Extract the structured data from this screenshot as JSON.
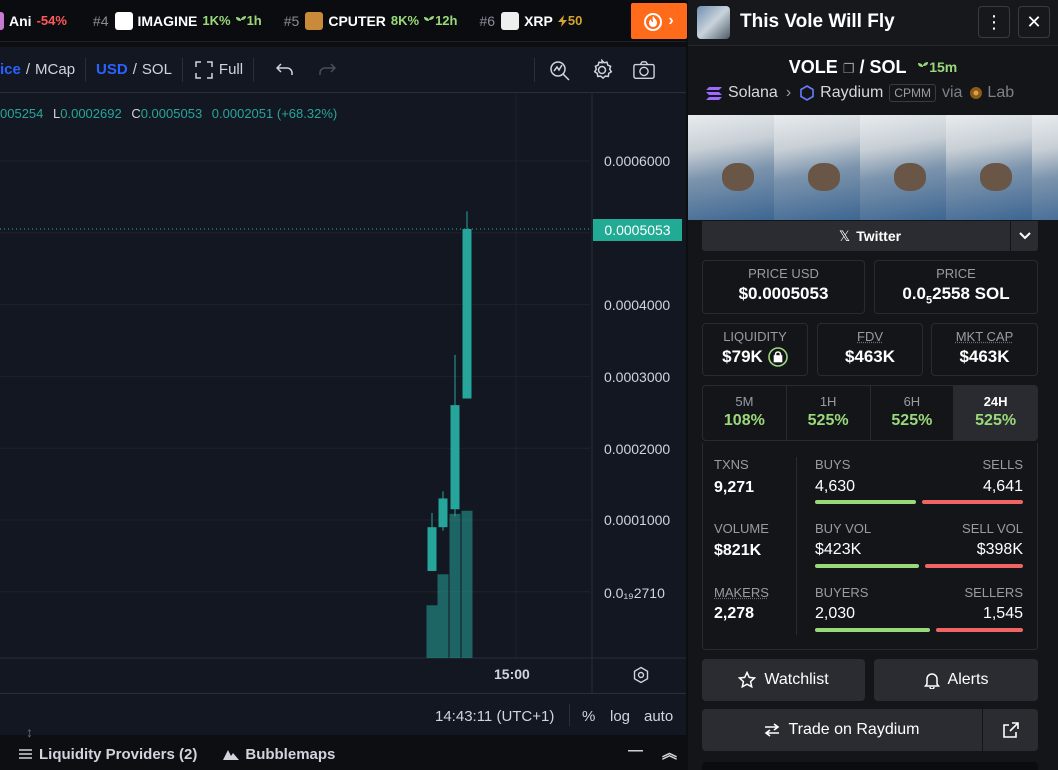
{
  "ticker": [
    {
      "rank": "",
      "name": "Ani",
      "change": "-54%",
      "dir": "neg",
      "age": "",
      "logo_color": "#c77ad1"
    },
    {
      "rank": "#4",
      "name": "IMAGINE",
      "change": "1K%",
      "dir": "pos",
      "age": "1h",
      "logo_color": "#ffffff"
    },
    {
      "rank": "#5",
      "name": "CPUTER",
      "change": "8K%",
      "dir": "pos",
      "age": "12h",
      "logo_color": "#c98a3a"
    },
    {
      "rank": "#6",
      "name": "XRP",
      "change": "",
      "dir": "pos",
      "age": "50",
      "logo_color": "#eeeeee"
    }
  ],
  "toolbar": {
    "price_mcap_partial": "ice",
    "price_mcap_sep": "/",
    "mcap_label": "MCap",
    "usd_label": "USD",
    "sol_label": "SOL",
    "full_label": "Full"
  },
  "ohlc": {
    "o_value": "005254",
    "l_key": "L",
    "l_value": "0.0002692",
    "c_key": "C",
    "c_value": "0.0005053",
    "change": "0.0002051 (+68.32%)"
  },
  "chart_data": {
    "type": "candlestick",
    "y_ticks": [
      "0.0006000",
      "0.0004000",
      "0.0003000",
      "0.0002000",
      "0.0001000",
      "0.0₁₉2710"
    ],
    "last_price_label": "0.0005053",
    "x_tick": "15:00",
    "candles": [
      {
        "open": 2.9e-05,
        "close": 9e-05,
        "high": 0.00011,
        "low": 2.9e-05
      },
      {
        "open": 9e-05,
        "close": 0.00013,
        "high": 0.00014,
        "low": 8.5e-05
      },
      {
        "open": 0.000115,
        "close": 0.00026,
        "high": 0.00033,
        "low": 0.000105
      },
      {
        "open": 0.0002692,
        "close": 0.0005053,
        "high": 0.00053,
        "low": 0.0002692
      }
    ],
    "volumes": [
      0.34,
      0.54,
      0.93,
      0.95
    ]
  },
  "status": {
    "time": "14:43:11 (UTC+1)",
    "percent": "%",
    "log": "log",
    "auto": "auto"
  },
  "bottom": {
    "liquidity": "Liquidity Providers (2)",
    "bubblemaps": "Bubblemaps"
  },
  "panel": {
    "title": "This Vole Will Fly",
    "pair_base": "VOLE",
    "pair_sep": "/",
    "pair_quote": "SOL",
    "pair_age": "15m",
    "chain": "Solana",
    "dex": "Raydium",
    "pool_type": "CPMM",
    "via": "via",
    "lab": "Lab",
    "twitter": "Twitter",
    "price_usd_label": "PRICE USD",
    "price_usd": "$0.0005053",
    "price_label": "PRICE",
    "price_sol_main": "0.0",
    "price_sol_sub": "5",
    "price_sol_tail": "2558 SOL",
    "liquidity_label": "LIQUIDITY",
    "liquidity": "$79K",
    "fdv_label": "FDV",
    "fdv": "$463K",
    "mcap_label": "MKT CAP",
    "mcap": "$463K",
    "timeframes": [
      {
        "label": "5M",
        "value": "108%",
        "active": false
      },
      {
        "label": "1H",
        "value": "525%",
        "active": false
      },
      {
        "label": "6H",
        "value": "525%",
        "active": false
      },
      {
        "label": "24H",
        "value": "525%",
        "active": true
      }
    ],
    "txns_label": "TXNS",
    "txns": "9,271",
    "buys_label": "BUYS",
    "buys": "4,630",
    "sells_label": "SELLS",
    "sells": "4,641",
    "volume_label": "VOLUME",
    "volume": "$821K",
    "buyvol_label": "BUY VOL",
    "buyvol": "$423K",
    "sellvol_label": "SELL VOL",
    "sellvol": "$398K",
    "makers_label": "MAKERS",
    "makers": "2,278",
    "buyers_label": "BUYERS",
    "buyers": "2,030",
    "sellers_label": "SELLERS",
    "sellers": "1,545",
    "buy_ratio": 0.499,
    "buyvol_ratio": 0.515,
    "buyers_ratio": 0.568,
    "watchlist": "Watchlist",
    "alerts": "Alerts",
    "trade": "Trade on Raydium"
  },
  "colors": {
    "up": "#26a69a",
    "accent": "#ff6b1a",
    "positive": "#9ad97a",
    "negative": "#f06464"
  }
}
